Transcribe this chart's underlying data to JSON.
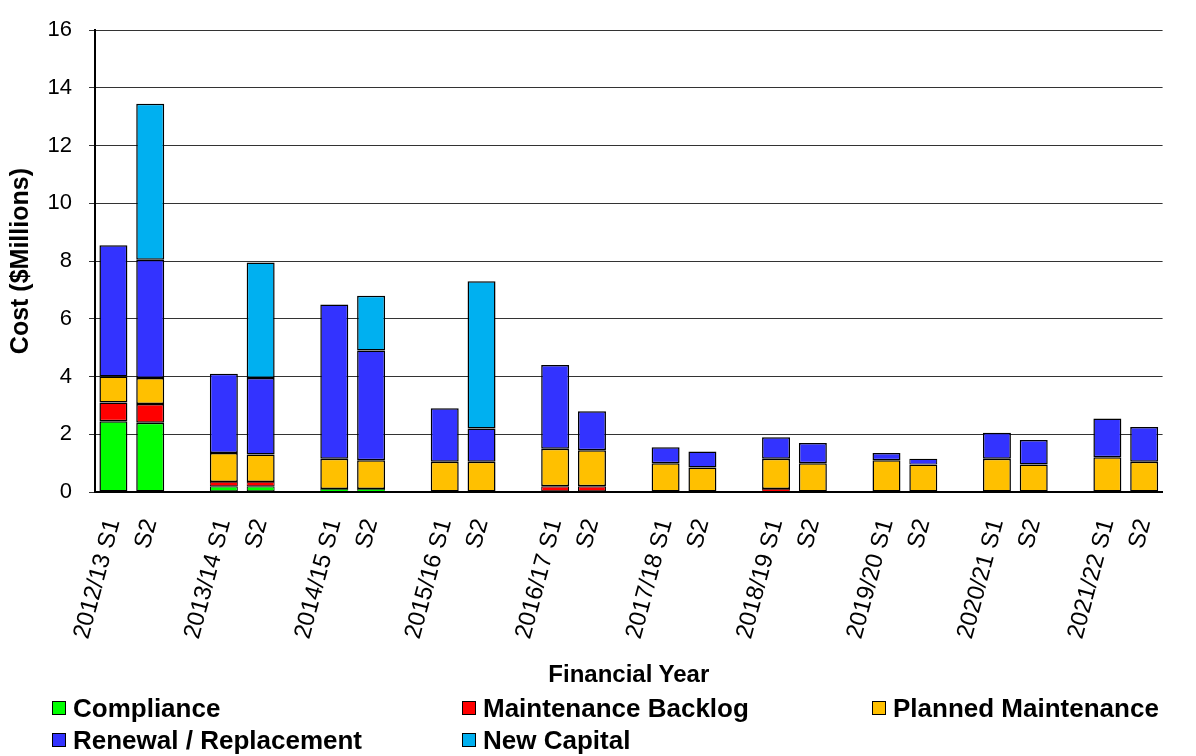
{
  "chart_data": {
    "type": "bar",
    "stacked": true,
    "xlabel": "Financial Year",
    "ylabel": "Cost ($Millions)",
    "categories": [
      "2012/13 S1",
      "S2",
      null,
      "2013/14 S1",
      "S2",
      null,
      "2014/15 S1",
      "S2",
      null,
      "2015/16 S1",
      "S2",
      null,
      "2016/17 S1",
      "S2",
      null,
      "2017/18 S1",
      "S2",
      null,
      "2018/19 S1",
      "S2",
      null,
      "2019/20 S1",
      "S2",
      null,
      "2020/21 S1",
      "S2",
      null,
      "2021/22 S1",
      "S2"
    ],
    "series": [
      {
        "name": "Compliance",
        "color": "#00ff00",
        "values": [
          2.45,
          2.4,
          null,
          0.2,
          0.2,
          null,
          0.1,
          0.1,
          null,
          null,
          null,
          null,
          null,
          null,
          null,
          null,
          null,
          null,
          null,
          null,
          null,
          null,
          null,
          null,
          null,
          null,
          null,
          null,
          null
        ]
      },
      {
        "name": "Maintenance Backlog",
        "color": "#ff0000",
        "values": [
          0.65,
          0.65,
          null,
          0.15,
          0.15,
          null,
          null,
          null,
          null,
          null,
          null,
          null,
          0.2,
          0.2,
          null,
          null,
          null,
          null,
          0.1,
          null,
          null,
          null,
          null,
          null,
          null,
          null,
          null,
          null,
          null
        ]
      },
      {
        "name": "Planned Maintenance",
        "color": "#ffc000",
        "values": [
          0.9,
          0.9,
          null,
          1.0,
          0.95,
          null,
          1.05,
          1.0,
          null,
          1.05,
          1.05,
          null,
          1.3,
          1.25,
          null,
          1.0,
          0.85,
          null,
          1.05,
          1.0,
          null,
          1.1,
          0.95,
          null,
          1.15,
          0.95,
          null,
          1.2,
          1.05
        ]
      },
      {
        "name": "Renewal / Replacement",
        "color": "#3333ff",
        "values": [
          4.55,
          4.1,
          null,
          2.75,
          2.65,
          null,
          5.35,
          3.8,
          null,
          1.85,
          1.15,
          null,
          2.9,
          1.35,
          null,
          0.55,
          0.55,
          null,
          0.75,
          0.7,
          null,
          0.25,
          0.2,
          null,
          0.9,
          0.85,
          null,
          1.35,
          1.2
        ]
      },
      {
        "name": "New Capital",
        "color": "#00b0f0",
        "values": [
          null,
          5.4,
          null,
          null,
          4.0,
          null,
          null,
          1.9,
          null,
          null,
          5.1,
          null,
          null,
          null,
          null,
          null,
          null,
          null,
          null,
          null,
          null,
          null,
          null,
          null,
          null,
          null,
          null,
          null,
          null
        ]
      }
    ],
    "ylim": [
      0,
      16
    ],
    "yticks": [
      0,
      2,
      4,
      6,
      8,
      10,
      12,
      14,
      16
    ],
    "grid": "y",
    "legend": "bottom"
  }
}
